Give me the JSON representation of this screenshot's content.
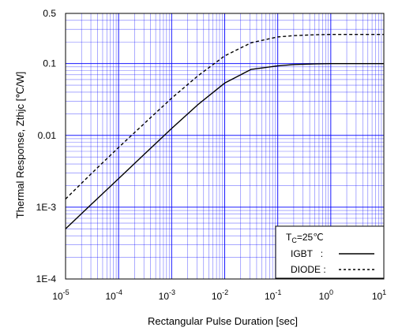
{
  "chart_data": {
    "type": "line",
    "title": "",
    "xlabel": "Rectangular Pulse Duration [sec]",
    "ylabel": "Thermal Response, Zthjc [℃/W]",
    "x_scale": "log",
    "y_scale": "log",
    "xlim": [
      1e-05,
      10
    ],
    "ylim": [
      0.0001,
      0.5
    ],
    "grid": true,
    "legend_position": "bottom-right",
    "x_ticks": [
      {
        "value": 1e-05,
        "base": "10",
        "exp": "-5"
      },
      {
        "value": 0.0001,
        "base": "10",
        "exp": "-4"
      },
      {
        "value": 0.001,
        "base": "10",
        "exp": "-3"
      },
      {
        "value": 0.01,
        "base": "10",
        "exp": "-2"
      },
      {
        "value": 0.1,
        "base": "10",
        "exp": "-1"
      },
      {
        "value": 1,
        "base": "10",
        "exp": "0"
      },
      {
        "value": 10,
        "base": "10",
        "exp": "1"
      }
    ],
    "y_ticks": [
      {
        "value": 0.0001,
        "label": "1E-4"
      },
      {
        "value": 0.001,
        "label": "1E-3"
      },
      {
        "value": 0.01,
        "label": "0.01"
      },
      {
        "value": 0.1,
        "label": "0.1"
      },
      {
        "value": 0.5,
        "label": "0.5"
      }
    ],
    "legend_condition": {
      "main": "T",
      "sub": "C",
      "rest": "=25℃"
    },
    "series": [
      {
        "name": "IGBT",
        "legend_label": "IGBT   :",
        "style": "solid",
        "color": "#000000",
        "x": [
          1e-05,
          3.16e-05,
          0.0001,
          0.000316,
          0.001,
          0.00316,
          0.01,
          0.0316,
          0.1,
          0.2,
          0.5,
          1,
          2,
          10
        ],
        "y": [
          0.0005,
          0.00112,
          0.0025,
          0.0056,
          0.0125,
          0.027,
          0.0535,
          0.083,
          0.093,
          0.097,
          0.099,
          0.1,
          0.1,
          0.1
        ]
      },
      {
        "name": "DIODE",
        "legend_label": "DIODE :",
        "style": "dashed",
        "color": "#000000",
        "x": [
          1e-05,
          3.16e-05,
          0.0001,
          0.000316,
          0.001,
          0.00316,
          0.01,
          0.0316,
          0.1,
          0.2,
          0.5,
          1,
          2,
          10
        ],
        "y": [
          0.0013,
          0.003,
          0.0068,
          0.015,
          0.033,
          0.068,
          0.128,
          0.195,
          0.235,
          0.245,
          0.252,
          0.255,
          0.255,
          0.255
        ]
      }
    ],
    "colors": {
      "major_grid": "#0000ff",
      "minor_grid": "#0000ff",
      "axis": "#000000",
      "background": "#ffffff"
    }
  }
}
